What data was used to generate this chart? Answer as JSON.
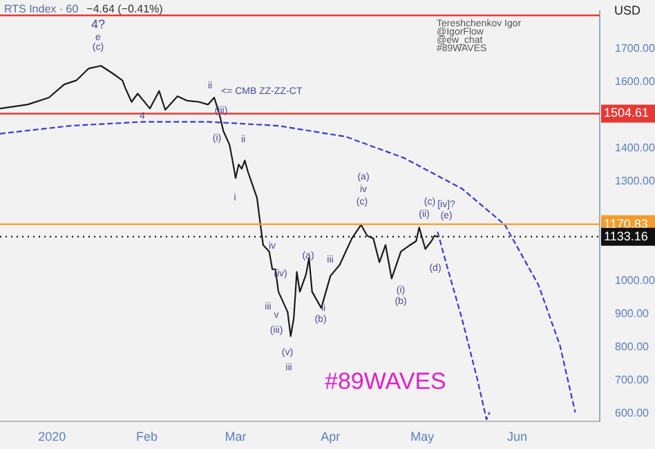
{
  "chart_data": {
    "type": "line",
    "title": "RTS Index · 60",
    "subtitle": "−4.64 (−0.41%)",
    "ylabel": "USD",
    "xlim": [
      "2019-12-15",
      "2020-06-28"
    ],
    "ylim": [
      575,
      1815
    ],
    "xticks": [
      {
        "value": "2020-01-01",
        "label": "2020"
      },
      {
        "value": "2020-02-01",
        "label": "Feb"
      },
      {
        "value": "2020-03-01",
        "label": "Mar"
      },
      {
        "value": "2020-04-01",
        "label": "Apr"
      },
      {
        "value": "2020-05-01",
        "label": "May"
      },
      {
        "value": "2020-06-01",
        "label": "Jun"
      }
    ],
    "yticks": [
      {
        "value": 600,
        "label": "600.00"
      },
      {
        "value": 700,
        "label": "700.00"
      },
      {
        "value": 800,
        "label": "800.00"
      },
      {
        "value": 900,
        "label": "900.00"
      },
      {
        "value": 1000,
        "label": "1000.00"
      },
      {
        "value": 1300,
        "label": "1300.00"
      },
      {
        "value": 1400,
        "label": "1400.00"
      },
      {
        "value": 1600,
        "label": "1600.00"
      },
      {
        "value": 1700,
        "label": "1700.00"
      }
    ],
    "grid": false,
    "legend": false,
    "marker": "none",
    "series": [
      {
        "color": "#1a1a1a",
        "x": [
          "2019-12-15",
          "2019-12-24",
          "2019-12-31",
          "2020-01-05",
          "2020-01-09",
          "2020-01-13",
          "2020-01-17",
          "2020-01-21",
          "2020-01-24",
          "2020-01-25",
          "2020-01-27",
          "2020-01-29",
          "2020-02-02",
          "2020-02-05",
          "2020-02-07",
          "2020-02-11",
          "2020-02-14",
          "2020-02-18",
          "2020-02-21",
          "2020-02-23",
          "2020-02-24",
          "2020-02-25",
          "2020-02-26",
          "2020-02-28",
          "2020-02-29",
          "2020-03-01",
          "2020-03-02",
          "2020-03-03",
          "2020-03-04",
          "2020-03-05",
          "2020-03-08",
          "2020-03-09",
          "2020-03-10",
          "2020-03-12",
          "2020-03-13",
          "2020-03-14",
          "2020-03-15",
          "2020-03-18",
          "2020-03-19",
          "2020-03-20",
          "2020-03-21",
          "2020-03-22",
          "2020-03-24",
          "2020-03-25",
          "2020-03-26",
          "2020-03-29",
          "2020-04-01",
          "2020-04-04",
          "2020-04-06",
          "2020-04-08",
          "2020-04-11",
          "2020-04-13",
          "2020-04-15",
          "2020-04-17",
          "2020-04-19",
          "2020-04-21",
          "2020-04-24",
          "2020-04-27",
          "2020-04-29",
          "2020-04-30",
          "2020-05-02",
          "2020-05-04",
          "2020-05-05",
          "2020-05-06"
        ],
        "values": [
          1520,
          1532,
          1553,
          1593,
          1605,
          1641,
          1649,
          1625,
          1605,
          1581,
          1540,
          1565,
          1520,
          1573,
          1516,
          1557,
          1544,
          1540,
          1532,
          1553,
          1524,
          1492,
          1452,
          1411,
          1363,
          1310,
          1351,
          1338,
          1363,
          1330,
          1250,
          1177,
          1108,
          1088,
          1035,
          1035,
          967,
          906,
          833,
          886,
          1027,
          967,
          1019,
          1068,
          967,
          918,
          1015,
          1048,
          1088,
          1128,
          1169,
          1136,
          1128,
          1056,
          1108,
          1007,
          1088,
          1108,
          1120,
          1161,
          1096,
          1120,
          1136,
          1133
        ]
      },
      {
        "color": "#3a3ad0",
        "line_style": "dashed",
        "x": [
          "2019-12-15",
          "2020-01-07",
          "2020-01-31",
          "2020-02-21",
          "2020-03-15",
          "2020-04-06",
          "2020-04-25",
          "2020-05-14",
          "2020-05-28",
          "2020-06-08",
          "2020-06-15",
          "2020-06-20"
        ],
        "values": [
          1444,
          1468,
          1480,
          1480,
          1468,
          1435,
          1371,
          1278,
          1169,
          987,
          805,
          603
        ]
      },
      {
        "color": "#3a3ad0",
        "line_style": "dashed",
        "x": [
          "2020-05-06",
          "2020-05-09",
          "2020-05-14",
          "2020-05-19",
          "2020-05-22",
          "2020-05-23"
        ],
        "values": [
          1148,
          1047,
          885,
          703,
          582,
          603
        ]
      }
    ],
    "ref_lines": [
      {
        "axis": "y",
        "value": 1801,
        "color": "#e53935"
      },
      {
        "axis": "y",
        "value": 1504.61,
        "label": "1504.61",
        "color": "#e53935"
      },
      {
        "axis": "y",
        "value": 1170.83,
        "label": "1170.83",
        "color": "#f59b2a"
      },
      {
        "axis": "y",
        "value": 1133.16,
        "label": "1133.16",
        "color": "#111111",
        "line_style": "dotted"
      }
    ],
    "annotations": [
      "4?",
      "e",
      "(c)",
      "4",
      "ii",
      "<= CMB ZZ-ZZ-CT",
      "(iii)",
      "(i)",
      "ii",
      "i",
      "iv",
      "(iv)",
      "iii",
      "v",
      "(iii)",
      "(v)",
      "iii",
      "(a)",
      "(b)",
      "iii",
      "ii",
      "(a)",
      "iv",
      "(c)",
      "(i)",
      "(b)",
      "(d)",
      "(c)",
      "(ii)",
      "[iv]?",
      "(e)",
      "Tereshchenkov Igor",
      "@IgorFlow",
      "@ew_chat",
      "#89WAVES",
      "#89WAVES"
    ]
  }
}
